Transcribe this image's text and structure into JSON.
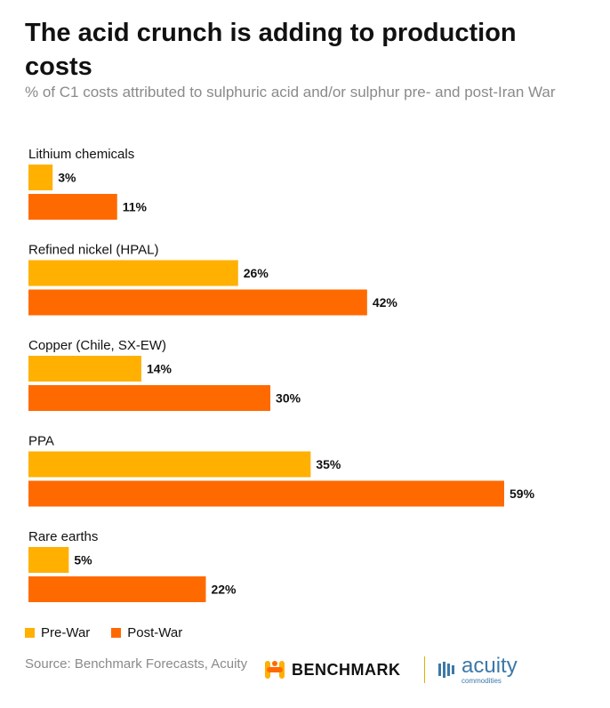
{
  "title": "The acid crunch is adding to production costs",
  "subtitle": "% of C1 costs attributed to sulphuric acid and/or sulphur pre- and post-Iran War",
  "source": "Source: Benchmark Forecasts, Acuity",
  "logos": {
    "benchmark": "BENCHMARK",
    "acuity": "acuity",
    "acuity_sub": "commodities"
  },
  "colors": {
    "pre_war": "#FFB000",
    "post_war": "#FF6A00"
  },
  "chart_data": {
    "type": "bar",
    "orientation": "horizontal",
    "title": "The acid crunch is adding to production costs",
    "subtitle": "% of C1 costs attributed to sulphuric acid and/or sulphur pre- and post-Iran War",
    "categories": [
      "Lithium chemicals",
      "Refined nickel (HPAL)",
      "Copper (Chile, SX-EW)",
      "PPA",
      "Rare earths"
    ],
    "series": [
      {
        "name": "Pre-War",
        "values": [
          3,
          26,
          14,
          35,
          5
        ],
        "labels": [
          "3%",
          "26%",
          "14%",
          "35%",
          "5%"
        ]
      },
      {
        "name": "Post-War",
        "values": [
          11,
          42,
          30,
          59,
          22
        ],
        "labels": [
          "11%",
          "42%",
          "30%",
          "59%",
          "22%"
        ]
      }
    ],
    "unit": "%",
    "xlim": [
      0,
      59
    ],
    "grid": false,
    "legend": "bottom-left"
  }
}
